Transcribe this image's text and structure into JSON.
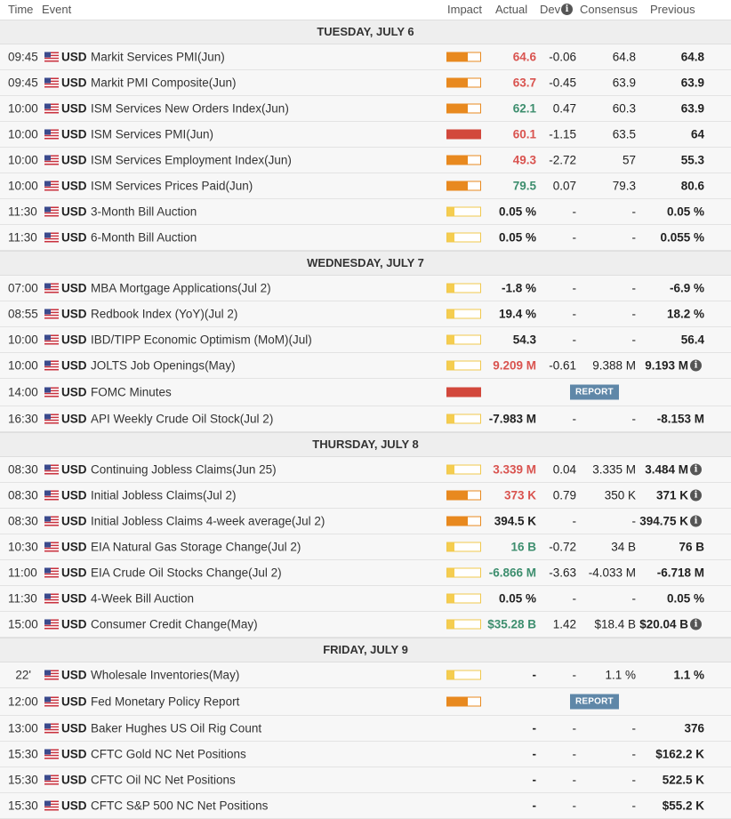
{
  "header": {
    "time": "Time",
    "event": "Event",
    "impact": "Impact",
    "actual": "Actual",
    "dev": "Dev",
    "consensus": "Consensus",
    "previous": "Previous",
    "info_icon": "info-icon"
  },
  "colors": {
    "up": "#d9534f",
    "down": "#3d8e6e",
    "impact_low": "#f5cd4f",
    "impact_med": "#e8891f",
    "impact_high": "#d2483c",
    "report": "#5f87a8"
  },
  "days": [
    {
      "label": "TUESDAY, JULY 6",
      "rows": [
        {
          "time": "09:45",
          "cur": "USD",
          "event": "Markit Services PMI(Jun)",
          "impact": "med",
          "actual": "64.6",
          "dir": "up",
          "dev": "-0.06",
          "consensus": "64.8",
          "previous": "64.8"
        },
        {
          "time": "09:45",
          "cur": "USD",
          "event": "Markit PMI Composite(Jun)",
          "impact": "med",
          "actual": "63.7",
          "dir": "up",
          "dev": "-0.45",
          "consensus": "63.9",
          "previous": "63.9"
        },
        {
          "time": "10:00",
          "cur": "USD",
          "event": "ISM Services New Orders Index(Jun)",
          "impact": "med",
          "actual": "62.1",
          "dir": "down",
          "dev": "0.47",
          "consensus": "60.3",
          "previous": "63.9"
        },
        {
          "time": "10:00",
          "cur": "USD",
          "event": "ISM Services PMI(Jun)",
          "impact": "high",
          "actual": "60.1",
          "dir": "up",
          "dev": "-1.15",
          "consensus": "63.5",
          "previous": "64"
        },
        {
          "time": "10:00",
          "cur": "USD",
          "event": "ISM Services Employment Index(Jun)",
          "impact": "med",
          "actual": "49.3",
          "dir": "up",
          "dev": "-2.72",
          "consensus": "57",
          "previous": "55.3"
        },
        {
          "time": "10:00",
          "cur": "USD",
          "event": "ISM Services Prices Paid(Jun)",
          "impact": "med",
          "actual": "79.5",
          "dir": "down",
          "dev": "0.07",
          "consensus": "79.3",
          "previous": "80.6"
        },
        {
          "time": "11:30",
          "cur": "USD",
          "event": "3-Month Bill Auction",
          "impact": "low",
          "actual": "0.05 %",
          "dir": "neutral",
          "dev": "-",
          "consensus": "-",
          "previous": "0.05 %"
        },
        {
          "time": "11:30",
          "cur": "USD",
          "event": "6-Month Bill Auction",
          "impact": "low",
          "actual": "0.05 %",
          "dir": "neutral",
          "dev": "-",
          "consensus": "-",
          "previous": "0.055 %"
        }
      ]
    },
    {
      "label": "WEDNESDAY, JULY 7",
      "rows": [
        {
          "time": "07:00",
          "cur": "USD",
          "event": "MBA Mortgage Applications(Jul 2)",
          "impact": "low",
          "actual": "-1.8 %",
          "dir": "neutral",
          "dev": "-",
          "consensus": "-",
          "previous": "-6.9 %"
        },
        {
          "time": "08:55",
          "cur": "USD",
          "event": "Redbook Index (YoY)(Jul 2)",
          "impact": "low",
          "actual": "19.4 %",
          "dir": "neutral",
          "dev": "-",
          "consensus": "-",
          "previous": "18.2 %"
        },
        {
          "time": "10:00",
          "cur": "USD",
          "event": "IBD/TIPP Economic Optimism (MoM)(Jul)",
          "impact": "low",
          "actual": "54.3",
          "dir": "neutral",
          "dev": "-",
          "consensus": "-",
          "previous": "56.4"
        },
        {
          "time": "10:00",
          "cur": "USD",
          "event": "JOLTS Job Openings(May)",
          "impact": "low",
          "actual": "9.209 M",
          "dir": "up",
          "dev": "-0.61",
          "consensus": "9.388 M",
          "previous": "9.193 M",
          "info": true
        },
        {
          "time": "14:00",
          "cur": "USD",
          "event": "FOMC Minutes",
          "impact": "high",
          "report": "REPORT",
          "tall": true
        },
        {
          "time": "16:30",
          "cur": "USD",
          "event": "API Weekly Crude Oil Stock(Jul 2)",
          "impact": "low",
          "actual": "-7.983 M",
          "dir": "neutral",
          "dev": "-",
          "consensus": "-",
          "previous": "-8.153 M"
        }
      ]
    },
    {
      "label": "THURSDAY, JULY 8",
      "rows": [
        {
          "time": "08:30",
          "cur": "USD",
          "event": "Continuing Jobless Claims(Jun 25)",
          "impact": "low",
          "actual": "3.339 M",
          "dir": "up",
          "dev": "0.04",
          "consensus": "3.335 M",
          "previous": "3.484 M",
          "info": true
        },
        {
          "time": "08:30",
          "cur": "USD",
          "event": "Initial Jobless Claims(Jul 2)",
          "impact": "med",
          "actual": "373 K",
          "dir": "up",
          "dev": "0.79",
          "consensus": "350 K",
          "previous": "371 K",
          "info": true
        },
        {
          "time": "08:30",
          "cur": "USD",
          "event": "Initial Jobless Claims 4-week average(Jul 2)",
          "impact": "med",
          "actual": "394.5 K",
          "dir": "neutral",
          "dev": "-",
          "consensus": "-",
          "previous": "394.75 K",
          "info": true
        },
        {
          "time": "10:30",
          "cur": "USD",
          "event": "EIA Natural Gas Storage Change(Jul 2)",
          "impact": "low",
          "actual": "16 B",
          "dir": "down",
          "dev": "-0.72",
          "consensus": "34 B",
          "previous": "76 B"
        },
        {
          "time": "11:00",
          "cur": "USD",
          "event": "EIA Crude Oil Stocks Change(Jul 2)",
          "impact": "low",
          "actual": "-6.866 M",
          "dir": "down",
          "dev": "-3.63",
          "consensus": "-4.033 M",
          "previous": "-6.718 M"
        },
        {
          "time": "11:30",
          "cur": "USD",
          "event": "4-Week Bill Auction",
          "impact": "low",
          "actual": "0.05 %",
          "dir": "neutral",
          "dev": "-",
          "consensus": "-",
          "previous": "0.05 %"
        },
        {
          "time": "15:00",
          "cur": "USD",
          "event": "Consumer Credit Change(May)",
          "impact": "low",
          "actual": "$35.28 B",
          "dir": "down",
          "dev": "1.42",
          "consensus": "$18.4 B",
          "previous": "$20.04 B",
          "info": true
        }
      ]
    },
    {
      "label": "FRIDAY, JULY 9",
      "rows": [
        {
          "time": "22'",
          "cur": "USD",
          "event": "Wholesale Inventories(May)",
          "impact": "low",
          "actual": "-",
          "dir": "neutral",
          "dev": "-",
          "consensus": "1.1 %",
          "previous": "1.1 %",
          "timeRight": true
        },
        {
          "time": "12:00",
          "cur": "USD",
          "event": "Fed Monetary Policy Report",
          "impact": "med",
          "report": "REPORT",
          "tall": true
        },
        {
          "time": "13:00",
          "cur": "USD",
          "event": "Baker Hughes US Oil Rig Count",
          "impact": "none",
          "actual": "-",
          "dir": "neutral",
          "dev": "-",
          "consensus": "-",
          "previous": "376"
        },
        {
          "time": "15:30",
          "cur": "USD",
          "event": "CFTC Gold NC Net Positions",
          "impact": "none",
          "actual": "-",
          "dir": "neutral",
          "dev": "-",
          "consensus": "-",
          "previous": "$162.2 K"
        },
        {
          "time": "15:30",
          "cur": "USD",
          "event": "CFTC Oil NC Net Positions",
          "impact": "none",
          "actual": "-",
          "dir": "neutral",
          "dev": "-",
          "consensus": "-",
          "previous": "522.5 K"
        },
        {
          "time": "15:30",
          "cur": "USD",
          "event": "CFTC S&P 500 NC Net Positions",
          "impact": "none",
          "actual": "-",
          "dir": "neutral",
          "dev": "-",
          "consensus": "-",
          "previous": "$55.2 K"
        }
      ]
    }
  ]
}
